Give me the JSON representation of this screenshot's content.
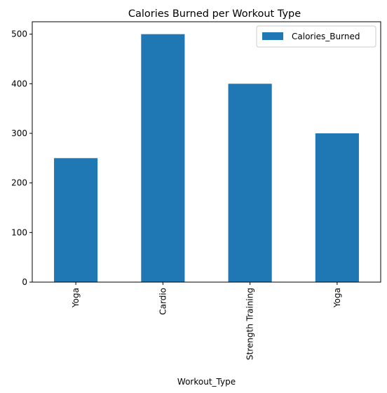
{
  "chart_data": {
    "type": "bar",
    "title": "Calories Burned per Workout Type",
    "xlabel": "Workout_Type",
    "ylabel": "",
    "categories": [
      "Yoga",
      "Cardio",
      "Strength Training",
      "Yoga"
    ],
    "series": [
      {
        "name": "Calories_Burned",
        "values": [
          250,
          500,
          400,
          300
        ],
        "color": "#1f77b4"
      }
    ],
    "yticks": [
      0,
      100,
      200,
      300,
      400,
      500
    ],
    "ylim": [
      0,
      525
    ],
    "grid": false,
    "legend": "top-right"
  }
}
